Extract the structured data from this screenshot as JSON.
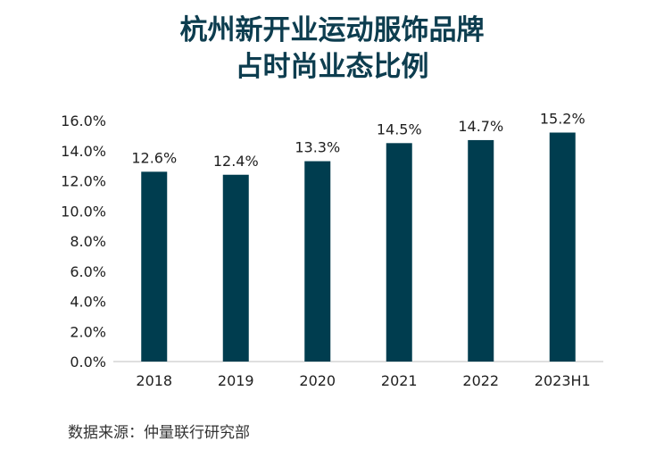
{
  "title_line1": "杭州新开业运动服饰品牌",
  "title_line2": "占时尚业态比例",
  "source": "数据来源：仲量联行研究部",
  "colors": {
    "bar": "#003d4f",
    "title": "#0d3d4f",
    "axis": "#bfbfbf",
    "text": "#1f1f1f"
  },
  "chart_data": {
    "type": "bar",
    "categories": [
      "2018",
      "2019",
      "2020",
      "2021",
      "2022",
      "2023H1"
    ],
    "values": [
      12.6,
      12.4,
      13.3,
      14.5,
      14.7,
      15.2
    ],
    "value_labels": [
      "12.6%",
      "12.4%",
      "13.3%",
      "14.5%",
      "14.7%",
      "15.2%"
    ],
    "y_ticks": [
      "0.0%",
      "2.0%",
      "4.0%",
      "6.0%",
      "8.0%",
      "10.0%",
      "12.0%",
      "14.0%",
      "16.0%"
    ],
    "ylim": [
      0,
      16
    ],
    "grid": false,
    "legend": "none"
  }
}
